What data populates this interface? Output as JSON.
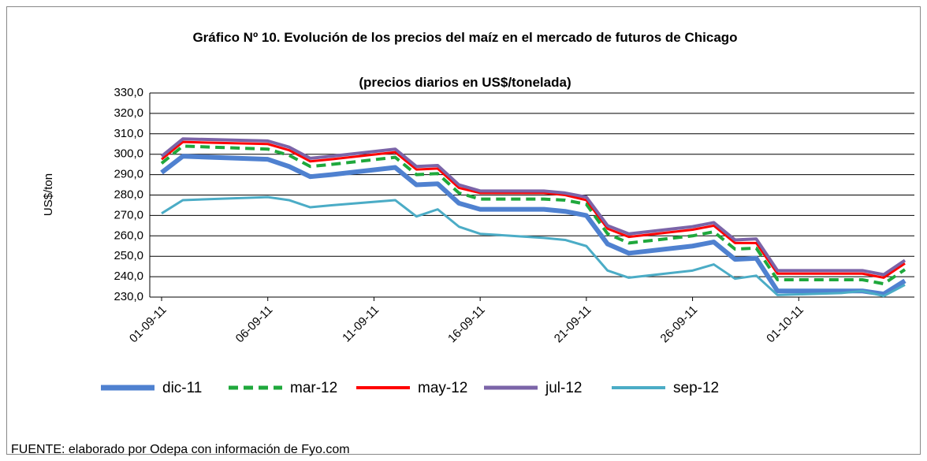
{
  "chart_data": {
    "type": "line",
    "title": "Gráfico Nº 10. Evolución de los precios del maíz en el mercado de futuros de Chicago",
    "subtitle": "(precios diarios en US$/tonelada)",
    "y_label": "US$/ton",
    "source": "FUENTE: elaborado por Odepa con información de Fyo.com",
    "x": [
      "01-09-11",
      "02-09-11",
      "06-09-11",
      "07-09-11",
      "08-09-11",
      "09-09-11",
      "12-09-11",
      "13-09-11",
      "14-09-11",
      "15-09-11",
      "16-09-11",
      "19-09-11",
      "20-09-11",
      "21-09-11",
      "22-09-11",
      "23-09-11",
      "26-09-11",
      "27-09-11",
      "28-09-11",
      "29-09-11",
      "30-09-11",
      "03-10-11",
      "04-10-11",
      "05-10-11",
      "06-10-11"
    ],
    "xlim": [
      "01-09-11",
      "06-10-11"
    ],
    "xticks": [
      "01-09-11",
      "06-09-11",
      "11-09-11",
      "16-09-11",
      "21-09-11",
      "26-09-11",
      "01-10-11"
    ],
    "ylim": [
      230,
      330
    ],
    "yticks": [
      {
        "value": 230,
        "label": "230,0"
      },
      {
        "value": 240,
        "label": "240,0"
      },
      {
        "value": 250,
        "label": "250,0"
      },
      {
        "value": 260,
        "label": "260,0"
      },
      {
        "value": 270,
        "label": "270,0"
      },
      {
        "value": 280,
        "label": "280,0"
      },
      {
        "value": 290,
        "label": "290,0"
      },
      {
        "value": 300,
        "label": "300,0"
      },
      {
        "value": 310,
        "label": "310,0"
      },
      {
        "value": 320,
        "label": "320,0"
      },
      {
        "value": 330,
        "label": "330,0"
      }
    ],
    "grid": true,
    "legend": "bottom",
    "series": [
      {
        "name": "dic-11",
        "color": "#4f81d0",
        "width": 6,
        "dashed": false,
        "values": [
          291,
          299,
          297.5,
          294,
          289,
          290,
          293.5,
          285,
          285.5,
          276,
          273,
          273,
          272,
          270,
          256,
          251.5,
          255,
          257,
          248.5,
          249,
          233,
          233,
          233,
          231.5,
          238
        ]
      },
      {
        "name": "mar-12",
        "color": "#1fa83c",
        "width": 4,
        "dashed": true,
        "values": [
          295.5,
          304,
          302.5,
          299.5,
          294,
          295,
          298.5,
          290,
          290.5,
          281,
          278,
          278,
          277.5,
          275.5,
          261,
          256.5,
          260,
          262,
          253.5,
          254,
          238.5,
          238.5,
          238.5,
          236.5,
          243.5
        ]
      },
      {
        "name": "may-12",
        "color": "#ff0000",
        "width": 3,
        "dashed": false,
        "values": [
          297.5,
          306,
          305,
          302,
          296.5,
          297.5,
          301,
          292.5,
          293,
          283.5,
          281,
          281,
          280,
          277.5,
          263.5,
          259.5,
          263,
          265,
          256.5,
          256.5,
          241.5,
          241.5,
          241.5,
          239.5,
          246.5
        ]
      },
      {
        "name": "jul-12",
        "color": "#7b64a8",
        "width": 4,
        "dashed": false,
        "values": [
          299,
          307.5,
          306.5,
          303.5,
          298,
          299,
          302.5,
          294,
          294.5,
          285,
          282,
          282,
          281,
          279,
          265,
          261,
          264.5,
          266.5,
          258,
          258.5,
          243,
          243,
          243,
          241,
          248
        ]
      },
      {
        "name": "sep-12",
        "color": "#4bacc6",
        "width": 3,
        "dashed": false,
        "values": [
          271,
          277.5,
          279,
          277.5,
          274,
          275,
          277.5,
          269.5,
          273,
          264.5,
          261,
          259,
          258,
          255,
          243,
          239.5,
          243,
          246,
          239,
          240.5,
          231,
          232,
          233,
          230.5,
          236
        ]
      }
    ]
  }
}
